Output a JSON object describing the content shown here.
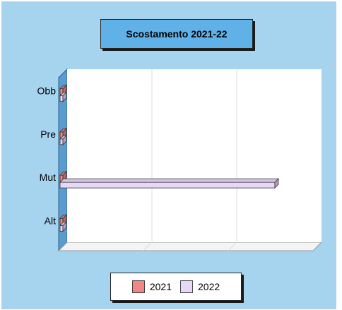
{
  "chart_data": {
    "type": "bar",
    "orientation": "horizontal",
    "title": "Scostamento 2021-22",
    "categories": [
      "Obb",
      "Pre",
      "Mut",
      "Alt"
    ],
    "series": [
      {
        "name": "2021",
        "color": "#f28585",
        "values": [
          0,
          0,
          0,
          0
        ]
      },
      {
        "name": "2022",
        "color": "#e8d8f8",
        "values": [
          0,
          0,
          1,
          0
        ]
      }
    ],
    "xlim": [
      0,
      1.2
    ],
    "grid": true,
    "legend_position": "bottom",
    "colors": {
      "background": "#a6d4ef",
      "plot": "#ffffff",
      "axis_wall": "#5a9ccf",
      "title_box": "#5fb1e8"
    }
  }
}
